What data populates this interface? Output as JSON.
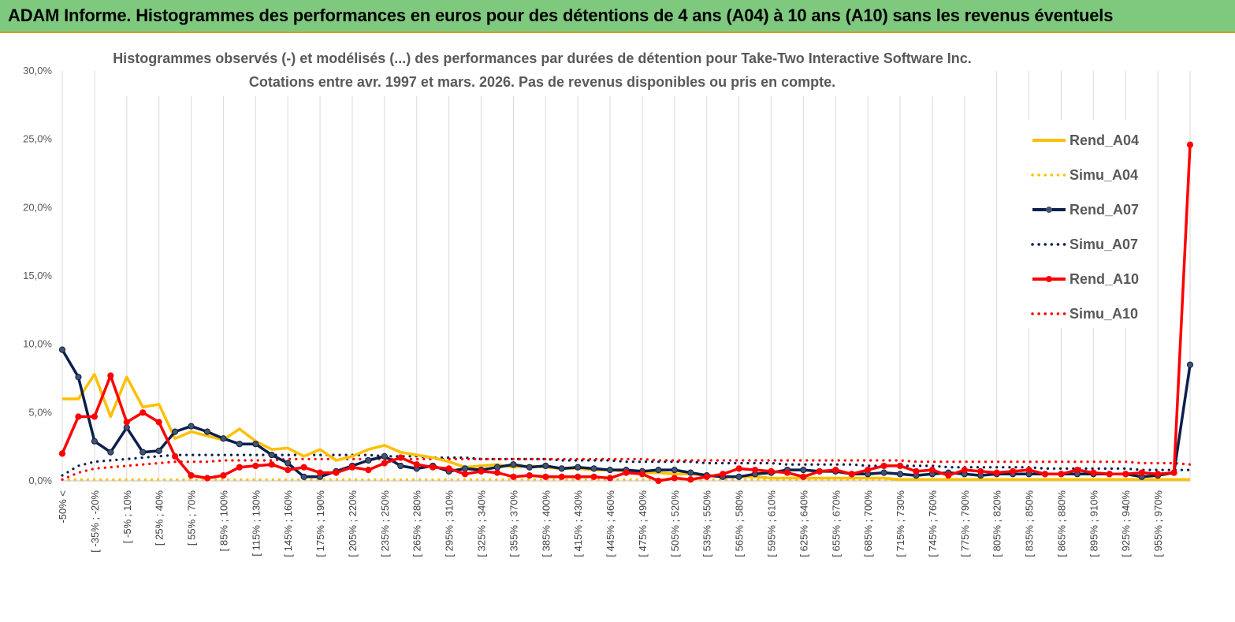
{
  "banner": {
    "title": "ADAM Informe. Histogrammes des performances en euros pour des détentions de 4 ans (A04) à 10 ans (A10) sans les revenus éventuels",
    "color": "#7fc97f"
  },
  "chart_data": {
    "type": "line",
    "title_line1": "Histogrammes observés (-) et modélisés (...) des performances par durées de détention pour Take-Two Interactive Software Inc.",
    "title_line2": "Cotations entre avr. 1997 et mars. 2026. Pas de revenus disponibles ou pris en compte.",
    "ylim": [
      0,
      30
    ],
    "yticks": [
      "0,0%",
      "5,0%",
      "10,0%",
      "15,0%",
      "20,0%",
      "25,0%",
      "30,0%"
    ],
    "x_tick_labels": [
      "-50% <",
      "[ -35% ; -20%",
      "[ -5% ; 10%",
      "[ 25% ; 40%",
      "[ 55% ; 70%",
      "[ 85% ; 100%",
      "[ 115% ; 130%",
      "[ 145% ; 160%",
      "[ 175% ; 190%",
      "[ 205% ; 220%",
      "[ 235% ; 250%",
      "[ 265% ; 280%",
      "[ 295% ; 310%",
      "[ 325% ; 340%",
      "[ 355% ; 370%",
      "[ 385% ; 400%",
      "[ 415% ; 430%",
      "[ 445% ; 460%",
      "[ 475% ; 490%",
      "[ 505% ; 520%",
      "[ 535% ; 550%",
      "[ 565% ; 580%",
      "[ 595% ; 610%",
      "[ 625% ; 640%",
      "[ 655% ; 670%",
      "[ 685% ; 700%",
      "[ 715% ; 730%",
      "[ 745% ; 760%",
      "[ 775% ; 790%",
      "[ 805% ; 820%",
      "[ 835% ; 850%",
      "[ 865% ; 880%",
      "[ 895% ; 910%",
      "[ 925% ; 940%",
      "[ 955% ; 970%"
    ],
    "legend_position": "right",
    "grid": "vertical",
    "series": [
      {
        "name": "Rend_A04",
        "style": "solid",
        "color": "#ffc000",
        "markers": false,
        "values": [
          6.0,
          6.0,
          7.8,
          4.7,
          7.6,
          5.4,
          5.6,
          3.1,
          3.6,
          3.3,
          3.0,
          3.8,
          2.9,
          2.3,
          2.4,
          1.8,
          2.3,
          1.5,
          1.8,
          2.3,
          2.6,
          2.1,
          1.9,
          1.7,
          1.4,
          1.0,
          1.1,
          1.2,
          1.0,
          1.1,
          1.0,
          0.9,
          0.9,
          0.8,
          0.8,
          0.7,
          0.6,
          0.6,
          0.5,
          0.5,
          0.4,
          0.3,
          0.3,
          0.3,
          0.2,
          0.2,
          0.2,
          0.2,
          0.2,
          0.2,
          0.2,
          0.2,
          0.1,
          0.1,
          0.1,
          0.1,
          0.1,
          0.1,
          0.1,
          0.1,
          0.1,
          0.1,
          0.1,
          0.1,
          0.1,
          0.1,
          0.1,
          0.1,
          0.1,
          0.1,
          0.1
        ]
      },
      {
        "name": "Simu_A04",
        "style": "dotted",
        "color": "#ffc000",
        "markers": false,
        "values": [
          0.1,
          0.1,
          0.1,
          0.1,
          0.1,
          0.1,
          0.1,
          0.1,
          0.1,
          0.1,
          0.1,
          0.1,
          0.1,
          0.1,
          0.1,
          0.1,
          0.1,
          0.1,
          0.1,
          0.1,
          0.1,
          0.1,
          0.1,
          0.1,
          0.1,
          0.1,
          0.1,
          0.1,
          0.1,
          0.1,
          0.1,
          0.1,
          0.1,
          0.1,
          0.1,
          0.1,
          0.1,
          0.1,
          0.1,
          0.1,
          0.1,
          0.1,
          0.1,
          0.1,
          0.1,
          0.1,
          0.1,
          0.1,
          0.1,
          0.1,
          0.1,
          0.1,
          0.1,
          0.1,
          0.1,
          0.1,
          0.1,
          0.1,
          0.1,
          0.1,
          0.1,
          0.1,
          0.1,
          0.1,
          0.1,
          0.1,
          0.1,
          0.1,
          0.1,
          0.1,
          0.1
        ]
      },
      {
        "name": "Rend_A07",
        "style": "solid",
        "color": "#0b1f4d",
        "markers": true,
        "values": [
          9.6,
          7.6,
          2.9,
          2.1,
          3.9,
          2.1,
          2.2,
          3.6,
          4.0,
          3.6,
          3.1,
          2.7,
          2.7,
          1.9,
          1.3,
          0.3,
          0.3,
          0.7,
          1.1,
          1.5,
          1.8,
          1.1,
          0.9,
          1.1,
          0.7,
          0.9,
          0.8,
          1.0,
          1.2,
          1.0,
          1.1,
          0.9,
          1.0,
          0.9,
          0.8,
          0.8,
          0.7,
          0.8,
          0.8,
          0.6,
          0.4,
          0.3,
          0.3,
          0.5,
          0.6,
          0.8,
          0.8,
          0.7,
          0.7,
          0.5,
          0.5,
          0.6,
          0.5,
          0.4,
          0.5,
          0.6,
          0.5,
          0.4,
          0.5,
          0.5,
          0.5,
          0.5,
          0.5,
          0.5,
          0.5,
          0.5,
          0.5,
          0.3,
          0.4,
          0.6,
          8.5
        ]
      },
      {
        "name": "Simu_A07",
        "style": "dotted",
        "color": "#0b1f4d",
        "markers": false,
        "values": [
          0.4,
          1.1,
          1.4,
          1.5,
          1.6,
          1.7,
          1.8,
          1.9,
          1.9,
          1.9,
          1.9,
          1.9,
          1.9,
          1.9,
          1.9,
          1.9,
          1.9,
          1.9,
          1.9,
          1.9,
          1.8,
          1.8,
          1.8,
          1.7,
          1.7,
          1.7,
          1.6,
          1.6,
          1.6,
          1.6,
          1.6,
          1.5,
          1.5,
          1.5,
          1.5,
          1.4,
          1.4,
          1.4,
          1.4,
          1.4,
          1.3,
          1.3,
          1.3,
          1.3,
          1.3,
          1.2,
          1.2,
          1.2,
          1.2,
          1.2,
          1.1,
          1.1,
          1.1,
          1.1,
          1.1,
          1.0,
          1.0,
          1.0,
          1.0,
          1.0,
          1.0,
          0.9,
          0.9,
          0.9,
          0.9,
          0.9,
          0.9,
          0.8,
          0.8,
          0.8,
          0.8
        ]
      },
      {
        "name": "Rend_A10",
        "style": "solid",
        "color": "#ff0000",
        "markers": true,
        "values": [
          2.0,
          4.7,
          4.7,
          7.7,
          4.3,
          5.0,
          4.3,
          1.8,
          0.4,
          0.2,
          0.4,
          1.0,
          1.1,
          1.2,
          0.8,
          1.0,
          0.6,
          0.6,
          1.0,
          0.8,
          1.3,
          1.7,
          1.2,
          1.0,
          0.9,
          0.5,
          0.7,
          0.6,
          0.3,
          0.4,
          0.3,
          0.3,
          0.3,
          0.3,
          0.2,
          0.6,
          0.5,
          0.0,
          0.2,
          0.1,
          0.3,
          0.5,
          0.9,
          0.8,
          0.7,
          0.6,
          0.3,
          0.7,
          0.8,
          0.5,
          0.8,
          1.1,
          1.1,
          0.7,
          0.8,
          0.4,
          0.8,
          0.7,
          0.6,
          0.7,
          0.8,
          0.5,
          0.5,
          0.8,
          0.6,
          0.5,
          0.5,
          0.6,
          0.5,
          0.6,
          24.6
        ]
      },
      {
        "name": "Simu_A10",
        "style": "dotted",
        "color": "#ff0000",
        "markers": false,
        "values": [
          0.1,
          0.6,
          0.9,
          1.0,
          1.1,
          1.2,
          1.3,
          1.4,
          1.4,
          1.4,
          1.5,
          1.5,
          1.5,
          1.5,
          1.6,
          1.6,
          1.6,
          1.6,
          1.6,
          1.6,
          1.6,
          1.6,
          1.6,
          1.6,
          1.6,
          1.6,
          1.6,
          1.6,
          1.6,
          1.6,
          1.6,
          1.6,
          1.6,
          1.6,
          1.6,
          1.6,
          1.6,
          1.5,
          1.5,
          1.5,
          1.5,
          1.5,
          1.5,
          1.5,
          1.5,
          1.5,
          1.5,
          1.5,
          1.5,
          1.5,
          1.5,
          1.5,
          1.5,
          1.4,
          1.4,
          1.4,
          1.4,
          1.4,
          1.4,
          1.4,
          1.4,
          1.4,
          1.4,
          1.4,
          1.4,
          1.4,
          1.4,
          1.3,
          1.3,
          1.3,
          1.2
        ]
      }
    ]
  }
}
